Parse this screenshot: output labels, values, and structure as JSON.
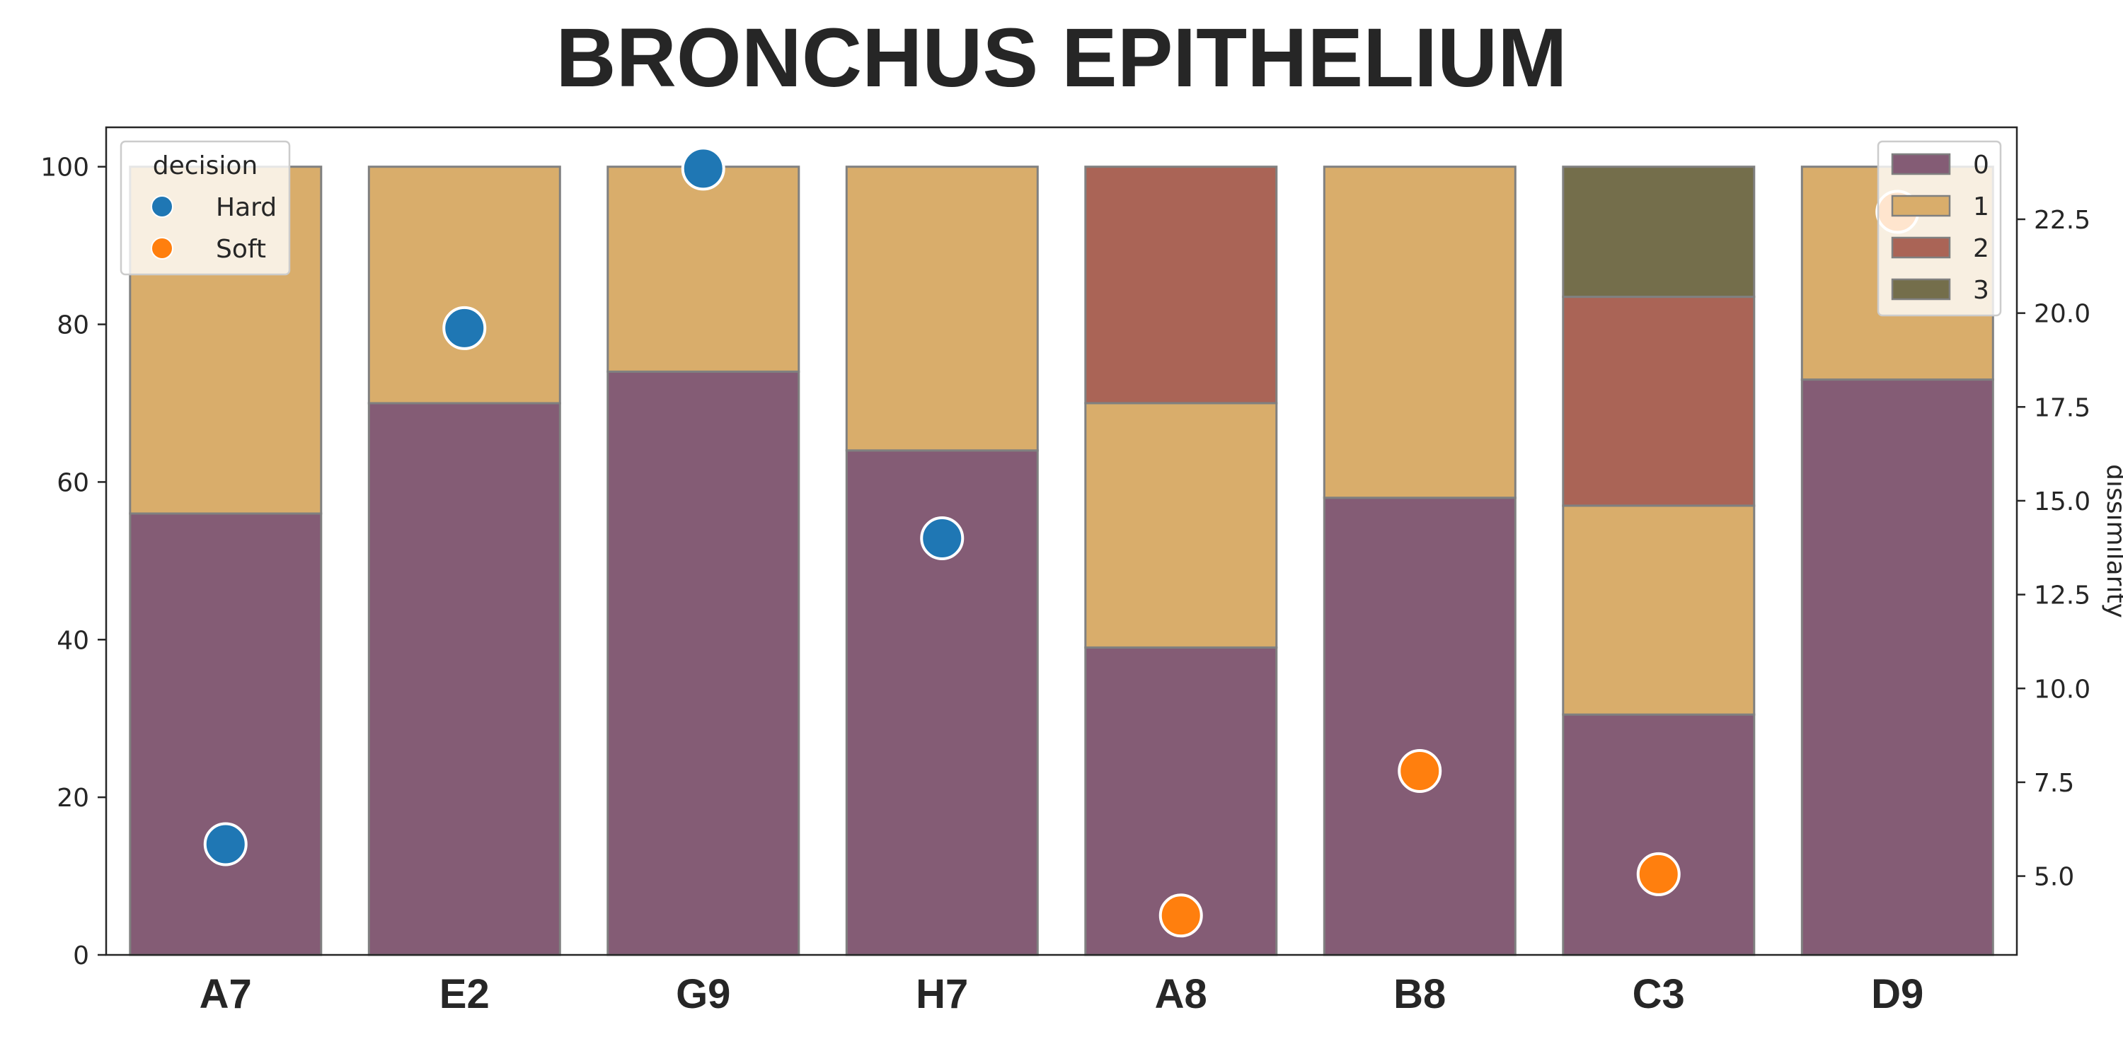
{
  "chart_data": {
    "type": "bar",
    "stacked": true,
    "title": "BRONCHUS EPITHELIUM",
    "categories": [
      "A7",
      "E2",
      "G9",
      "H7",
      "A8",
      "B8",
      "C3",
      "D9"
    ],
    "y_left": {
      "ylim": [
        0,
        105
      ],
      "ticks": [
        0,
        20,
        40,
        60,
        80,
        100
      ]
    },
    "y_right": {
      "label": "dissimilarity",
      "ylim": [
        2.9,
        24.95
      ],
      "ticks": [
        "5.0",
        "7.5",
        "10.0",
        "12.5",
        "15.0",
        "17.5",
        "20.0",
        "22.5"
      ]
    },
    "grid": false,
    "series": [
      {
        "name": "0",
        "color": "#845c75",
        "values": [
          56,
          70,
          74,
          64,
          39,
          58,
          30.5,
          73
        ]
      },
      {
        "name": "1",
        "color": "#d9ad6b",
        "values": [
          44,
          30,
          26,
          36,
          31,
          42,
          26.5,
          27
        ]
      },
      {
        "name": "2",
        "color": "#aa6456",
        "values": [
          0,
          0,
          0,
          0,
          30,
          0,
          26.5,
          0
        ]
      },
      {
        "name": "3",
        "color": "#746e4b",
        "values": [
          0,
          0,
          0,
          0,
          0,
          0,
          16.5,
          0
        ]
      }
    ],
    "scatter": {
      "legend_title": "decision",
      "groups": [
        {
          "name": "Hard",
          "color": "#1f77b4"
        },
        {
          "name": "Soft",
          "color": "#ff7f0e"
        }
      ],
      "points": [
        {
          "category": "A7",
          "group": "Hard",
          "dissimilarity": 5.85
        },
        {
          "category": "E2",
          "group": "Hard",
          "dissimilarity": 19.6
        },
        {
          "category": "G9",
          "group": "Hard",
          "dissimilarity": 23.85
        },
        {
          "category": "H7",
          "group": "Hard",
          "dissimilarity": 14.0
        },
        {
          "category": "A8",
          "group": "Soft",
          "dissimilarity": 3.95
        },
        {
          "category": "B8",
          "group": "Soft",
          "dissimilarity": 7.8
        },
        {
          "category": "C3",
          "group": "Soft",
          "dissimilarity": 5.05
        },
        {
          "category": "D9",
          "group": "Soft",
          "dissimilarity": 22.7
        }
      ]
    },
    "legends": {
      "decision": "top-left",
      "stack": "top-right"
    }
  }
}
